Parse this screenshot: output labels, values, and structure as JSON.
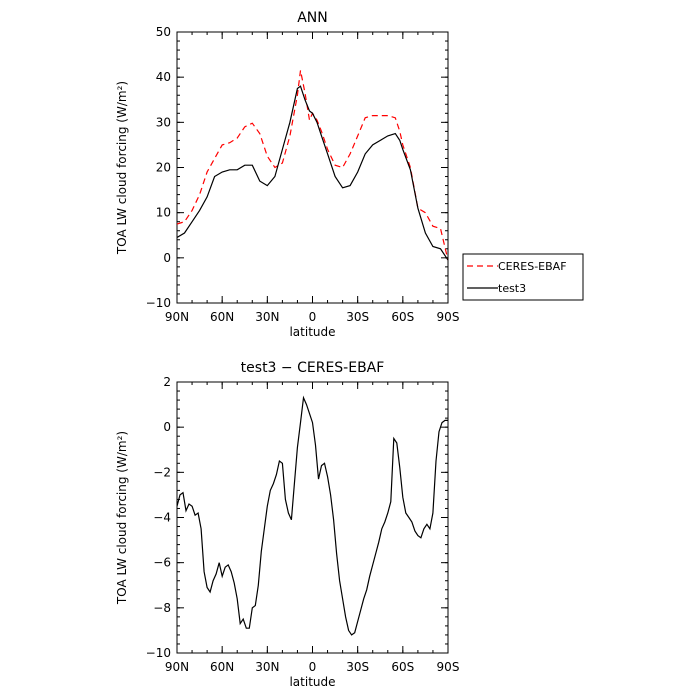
{
  "chart_data": [
    {
      "type": "line",
      "title": "ANN",
      "xlabel": "latitude",
      "ylabel": "TOA LW cloud forcing (W/m²)",
      "xlim": [
        90,
        -90
      ],
      "ylim": [
        -10,
        50
      ],
      "x_ticks": [
        90,
        60,
        30,
        0,
        -30,
        -60,
        -90
      ],
      "x_tick_labels": [
        "90N",
        "60N",
        "30N",
        "0",
        "30S",
        "60S",
        "90S"
      ],
      "y_ticks": [
        -10,
        0,
        10,
        20,
        30,
        40,
        50
      ],
      "y_tick_labels": [
        "−10",
        "0",
        "10",
        "20",
        "30",
        "40",
        "50"
      ],
      "legend": {
        "placement": "right",
        "entries": [
          "CERES-EBAF",
          "test3"
        ]
      },
      "series": [
        {
          "name": "CERES-EBAF",
          "color": "#ff0000",
          "style": "dashed",
          "x": [
            90,
            85,
            80,
            75,
            70,
            65,
            60,
            55,
            50,
            45,
            40,
            35,
            30,
            25,
            20,
            15,
            10,
            8,
            5,
            2,
            0,
            -3,
            -6,
            -10,
            -15,
            -20,
            -25,
            -30,
            -35,
            -40,
            -45,
            -50,
            -55,
            -58,
            -60,
            -65,
            -70,
            -75,
            -80,
            -85,
            -90
          ],
          "y": [
            7.5,
            8,
            10.5,
            14,
            19,
            22,
            25,
            25.5,
            26.5,
            29,
            29.8,
            27.5,
            22.5,
            20,
            21,
            27,
            36,
            41.5,
            36.5,
            30.5,
            32,
            30.5,
            28,
            24,
            20.5,
            20,
            23,
            27,
            31,
            31.5,
            31.5,
            31.5,
            31,
            28,
            25,
            20,
            11,
            10,
            7,
            6.5,
            -0.5
          ]
        },
        {
          "name": "test3",
          "color": "#000000",
          "style": "solid",
          "x": [
            90,
            85,
            80,
            75,
            70,
            65,
            60,
            55,
            50,
            45,
            40,
            35,
            30,
            25,
            20,
            15,
            10,
            8,
            5,
            2,
            0,
            -3,
            -6,
            -10,
            -15,
            -20,
            -25,
            -30,
            -35,
            -40,
            -45,
            -50,
            -55,
            -58,
            -60,
            -65,
            -70,
            -75,
            -80,
            -85,
            -90
          ],
          "y": [
            4.5,
            5.5,
            8,
            10.5,
            13.5,
            18,
            19,
            19.5,
            19.5,
            20.5,
            20.5,
            17,
            16,
            18,
            24,
            30,
            37.5,
            38,
            35,
            32.5,
            32,
            30,
            27,
            23,
            18,
            15.5,
            16,
            19,
            23,
            25,
            26,
            27,
            27.5,
            26,
            24,
            19.5,
            11,
            5.5,
            2.5,
            2,
            -0.5
          ]
        }
      ]
    },
    {
      "type": "line",
      "title": "test3 − CERES-EBAF",
      "xlabel": "latitude",
      "ylabel": "TOA LW cloud forcing (W/m²)",
      "xlim": [
        90,
        -90
      ],
      "ylim": [
        -10,
        2
      ],
      "x_ticks": [
        90,
        60,
        30,
        0,
        -30,
        -60,
        -90
      ],
      "x_tick_labels": [
        "90N",
        "60N",
        "30N",
        "0",
        "30S",
        "60S",
        "90S"
      ],
      "y_ticks": [
        -10,
        -8,
        -6,
        -4,
        -2,
        0,
        2
      ],
      "y_tick_labels": [
        "−10",
        "−8",
        "−6",
        "−4",
        "−2",
        "0",
        "2"
      ],
      "series": [
        {
          "color": "#000000",
          "style": "solid",
          "x": [
            90,
            88,
            86,
            84,
            82,
            80,
            78,
            76,
            74,
            72,
            70,
            68,
            66,
            64,
            62,
            60,
            58,
            56,
            54,
            52,
            50,
            48,
            46,
            44,
            42,
            40,
            38,
            36,
            34,
            32,
            30,
            28,
            26,
            24,
            22,
            20,
            18,
            16,
            14,
            12,
            10,
            8,
            6,
            4,
            2,
            0,
            -2,
            -4,
            -6,
            -8,
            -10,
            -12,
            -14,
            -16,
            -18,
            -20,
            -22,
            -24,
            -26,
            -28,
            -30,
            -32,
            -34,
            -36,
            -38,
            -40,
            -42,
            -44,
            -46,
            -48,
            -50,
            -52,
            -54,
            -56,
            -58,
            -60,
            -62,
            -64,
            -66,
            -68,
            -70,
            -72,
            -74,
            -76,
            -78,
            -80,
            -82,
            -84,
            -86,
            -88,
            -90
          ],
          "y": [
            -3.5,
            -3,
            -2.9,
            -3.7,
            -3.4,
            -3.5,
            -3.9,
            -3.8,
            -4.5,
            -6.4,
            -7.1,
            -7.3,
            -6.8,
            -6.5,
            -6,
            -6.6,
            -6.2,
            -6.1,
            -6.4,
            -6.9,
            -7.6,
            -8.7,
            -8.5,
            -8.9,
            -8.9,
            -8.0,
            -7.9,
            -7.0,
            -5.5,
            -4.5,
            -3.5,
            -2.8,
            -2.5,
            -2.1,
            -1.5,
            -1.6,
            -3.2,
            -3.8,
            -4.1,
            -2.5,
            -0.9,
            0.2,
            1.3,
            1,
            0.6,
            0.2,
            -0.8,
            -2.3,
            -1.7,
            -1.6,
            -2.2,
            -3.0,
            -4.1,
            -5.6,
            -6.8,
            -7.6,
            -8.4,
            -9.0,
            -9.2,
            -9.1,
            -8.6,
            -8.1,
            -7.6,
            -7.2,
            -6.6,
            -6.1,
            -5.6,
            -5.1,
            -4.5,
            -4.2,
            -3.8,
            -3.3,
            -0.5,
            -0.7,
            -1.8,
            -3.1,
            -3.8,
            -4.0,
            -4.2,
            -4.6,
            -4.8,
            -4.9,
            -4.5,
            -4.3,
            -4.5,
            -3.8,
            -1.5,
            -0.2,
            0.2,
            0.3,
            0.3
          ]
        }
      ]
    }
  ]
}
